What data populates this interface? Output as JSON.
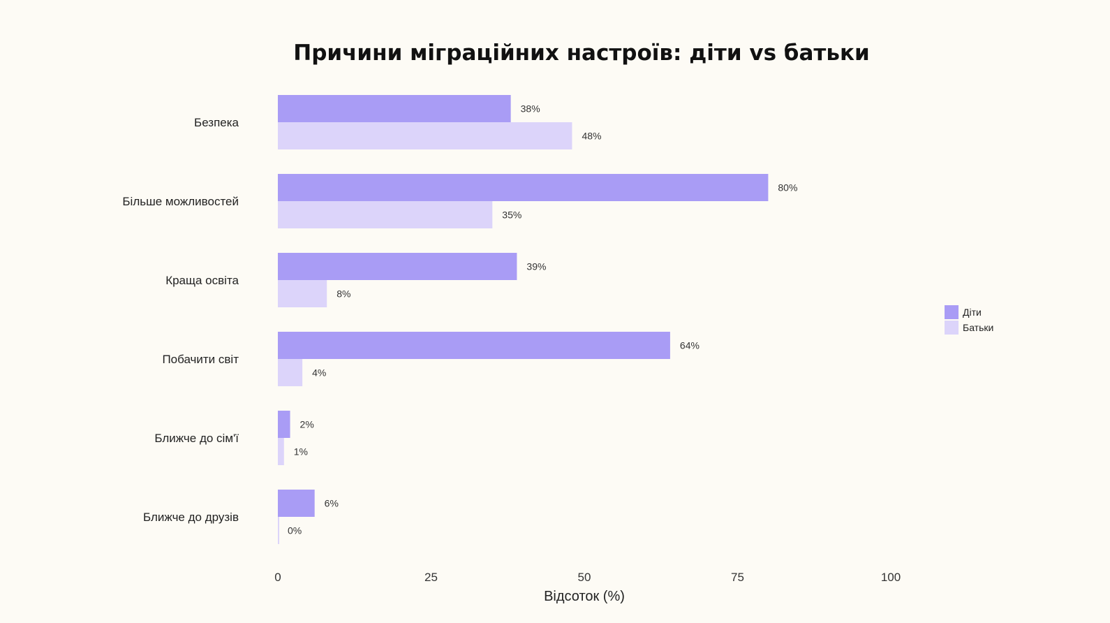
{
  "chart_data": {
    "type": "bar",
    "orientation": "horizontal",
    "title": "Причини міграційних настроїв: діти vs батьки",
    "xlabel": "Відсоток (%)",
    "ylabel": "",
    "xlim": [
      0,
      100
    ],
    "xticks": [
      0,
      25,
      50,
      75,
      100
    ],
    "categories": [
      "Безпека",
      "Більше можливостей",
      "Краща освіта",
      "Побачити світ",
      "Ближче до сім'ї",
      "Ближче до друзів"
    ],
    "series": [
      {
        "name": "Діти",
        "color": "#a99cf5",
        "values": [
          38,
          80,
          39,
          64,
          2,
          6
        ]
      },
      {
        "name": "Батьки",
        "color": "#dcd4fa",
        "values": [
          48,
          35,
          8,
          4,
          1,
          0
        ]
      }
    ],
    "value_suffix": "%",
    "grid": false,
    "legend_position": "right"
  }
}
